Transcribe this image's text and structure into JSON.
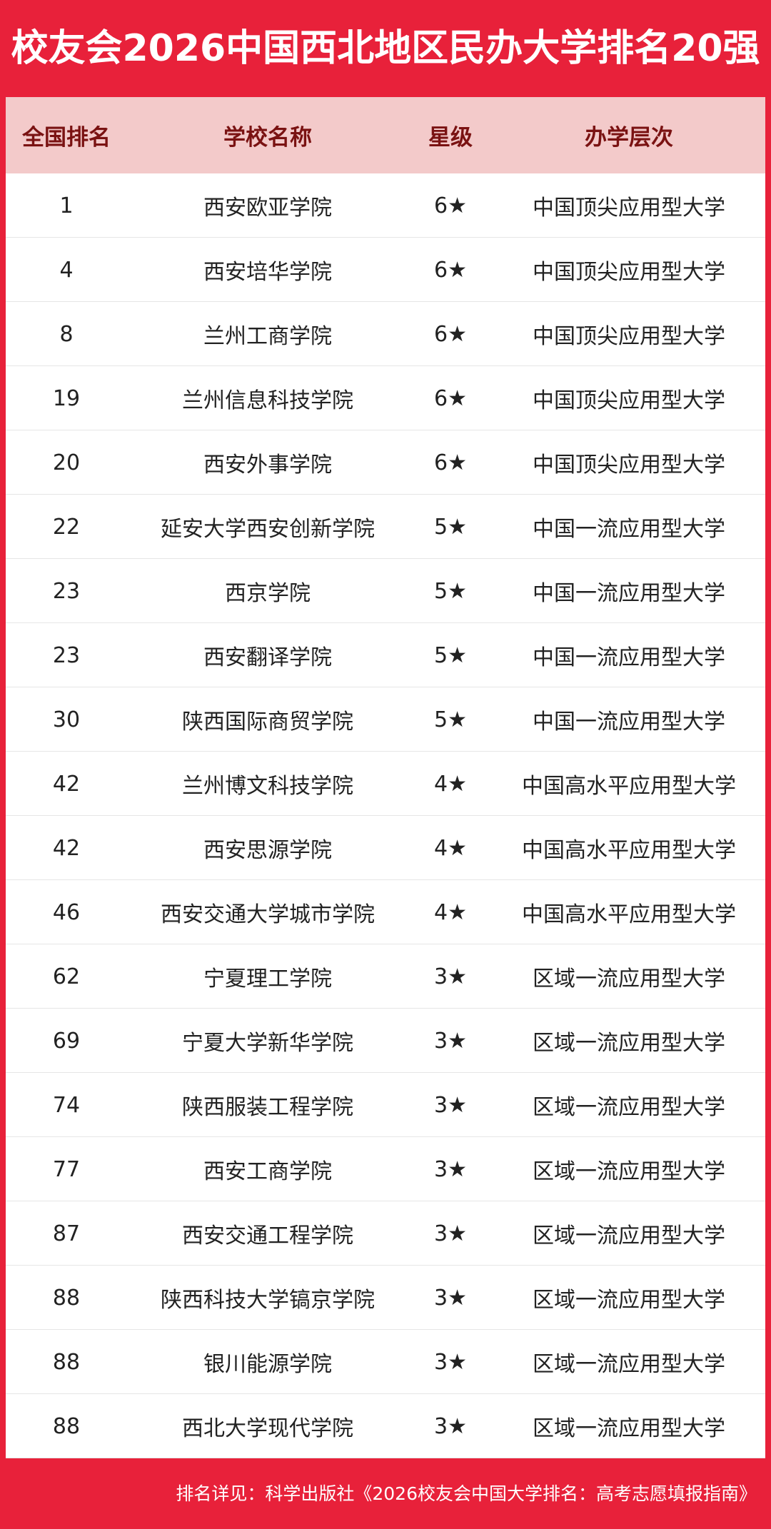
{
  "header": {
    "title": "校友会2026中国西北地区民办大学排名20强"
  },
  "table": {
    "columns": [
      "全国排名",
      "学校名称",
      "星级",
      "办学层次"
    ],
    "rows": [
      [
        1,
        "西安欧亚学院",
        "6★",
        "中国顶尖应用型大学"
      ],
      [
        4,
        "西安培华学院",
        "6★",
        "中国顶尖应用型大学"
      ],
      [
        8,
        "兰州工商学院",
        "6★",
        "中国顶尖应用型大学"
      ],
      [
        19,
        "兰州信息科技学院",
        "6★",
        "中国顶尖应用型大学"
      ],
      [
        20,
        "西安外事学院",
        "6★",
        "中国顶尖应用型大学"
      ],
      [
        22,
        "延安大学西安创新学院",
        "5★",
        "中国一流应用型大学"
      ],
      [
        23,
        "西京学院",
        "5★",
        "中国一流应用型大学"
      ],
      [
        23,
        "西安翻译学院",
        "5★",
        "中国一流应用型大学"
      ],
      [
        30,
        "陕西国际商贸学院",
        "5★",
        "中国一流应用型大学"
      ],
      [
        42,
        "兰州博文科技学院",
        "4★",
        "中国高水平应用型大学"
      ],
      [
        42,
        "西安思源学院",
        "4★",
        "中国高水平应用型大学"
      ],
      [
        46,
        "西安交通大学城市学院",
        "4★",
        "中国高水平应用型大学"
      ],
      [
        62,
        "宁夏理工学院",
        "3★",
        "区域一流应用型大学"
      ],
      [
        69,
        "宁夏大学新华学院",
        "3★",
        "区域一流应用型大学"
      ],
      [
        74,
        "陕西服装工程学院",
        "3★",
        "区域一流应用型大学"
      ],
      [
        77,
        "西安工商学院",
        "3★",
        "区域一流应用型大学"
      ],
      [
        87,
        "西安交通工程学院",
        "3★",
        "区域一流应用型大学"
      ],
      [
        88,
        "陕西科技大学镐京学院",
        "3★",
        "区域一流应用型大学"
      ],
      [
        88,
        "银川能源学院",
        "3★",
        "区域一流应用型大学"
      ],
      [
        88,
        "西北大学现代学院",
        "3★",
        "区域一流应用型大学"
      ]
    ]
  },
  "footer": {
    "note": "排名详见：科学出版社《2026校友会中国大学排名：高考志愿填报指南》"
  }
}
